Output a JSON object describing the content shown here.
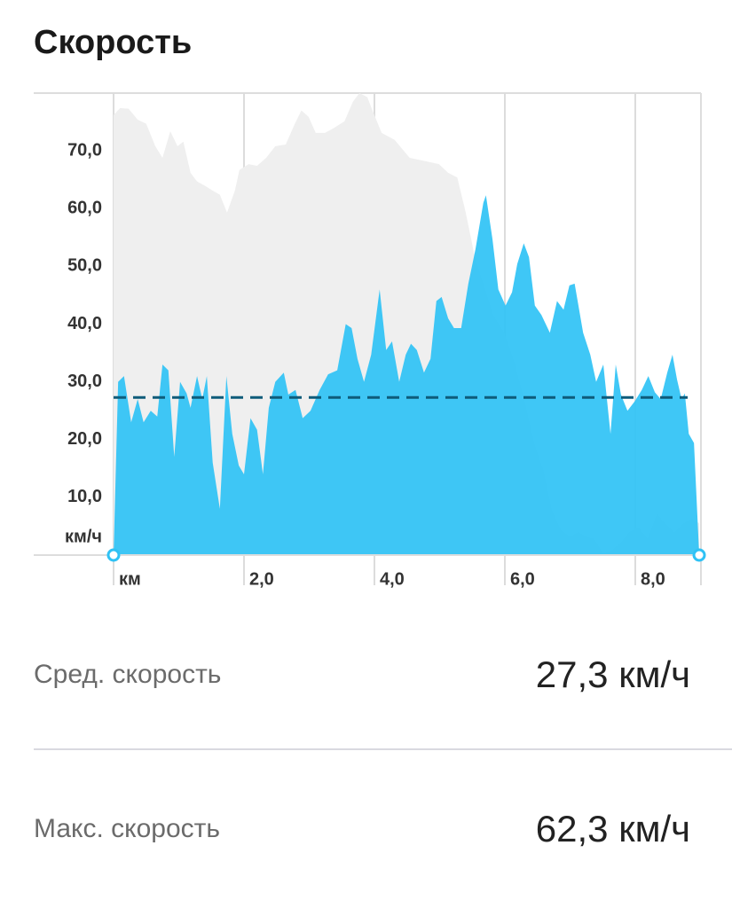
{
  "chart_data": {
    "type": "area",
    "title": "Скорость",
    "xlim": [
      0,
      9
    ],
    "ylim": [
      0,
      80
    ],
    "xticks": [
      {
        "value": 0,
        "label": "км"
      },
      {
        "value": 2,
        "label": "2,0"
      },
      {
        "value": 4,
        "label": "4,0"
      },
      {
        "value": 6,
        "label": "6,0"
      },
      {
        "value": 8,
        "label": "8,0"
      }
    ],
    "yticks": [
      {
        "value": 0,
        "label": "км/ч"
      },
      {
        "value": 10,
        "label": "10,0"
      },
      {
        "value": 20,
        "label": "20,0"
      },
      {
        "value": 30,
        "label": "30,0"
      },
      {
        "value": 40,
        "label": "40,0"
      },
      {
        "value": 50,
        "label": "50,0"
      },
      {
        "value": 60,
        "label": "60,0"
      },
      {
        "value": 70,
        "label": "70,0"
      }
    ],
    "grid": true,
    "series": [
      {
        "color": "#efefef",
        "x": [
          0,
          0.1,
          0.23,
          0.37,
          0.5,
          0.64,
          0.75,
          0.87,
          0.98,
          1.07,
          1.18,
          1.28,
          1.41,
          1.52,
          1.63,
          1.74,
          1.86,
          1.93,
          2.07,
          2.2,
          2.34,
          2.48,
          2.64,
          2.78,
          2.88,
          2.99,
          3.1,
          3.24,
          3.37,
          3.54,
          3.67,
          3.77,
          3.89,
          3.97,
          4.11,
          4.31,
          4.54,
          4.79,
          4.99,
          5.13,
          5.27,
          5.4,
          5.54,
          5.67,
          5.82,
          5.99,
          6.15,
          6.31,
          6.45,
          6.59,
          6.72,
          6.86,
          7.0,
          7.13,
          7.24,
          7.37,
          7.51,
          7.65,
          7.78,
          7.91,
          8.05,
          8.19,
          8.33,
          8.46,
          8.6,
          8.74,
          8.87,
          8.98
        ],
        "values": [
          76.2,
          77.4,
          77.3,
          75.4,
          74.7,
          70.8,
          68.8,
          73.4,
          70.8,
          71.6,
          66.2,
          64.7,
          63.9,
          63.1,
          62.4,
          59.3,
          63.1,
          66.7,
          67.7,
          67.4,
          68.8,
          70.8,
          71.1,
          74.7,
          77,
          75.9,
          73.1,
          73.1,
          73.9,
          75.1,
          78.5,
          80,
          79.3,
          77,
          73.1,
          71.9,
          68.8,
          68.2,
          67.7,
          66.2,
          65.4,
          59.3,
          51.6,
          47,
          41.6,
          38.5,
          33.2,
          26.3,
          19.4,
          14.7,
          7.8,
          4.3,
          3.2,
          4,
          3.2,
          2.8,
          0.2,
          0.9,
          2.2,
          4,
          4.8,
          2.8,
          7.1,
          5.5,
          4,
          5.5,
          6.3,
          5.5
        ]
      },
      {
        "color": "#2fc2f5",
        "x": [
          0,
          0.07,
          0.16,
          0.27,
          0.37,
          0.46,
          0.57,
          0.67,
          0.75,
          0.84,
          0.93,
          1.02,
          1.12,
          1.18,
          1.28,
          1.36,
          1.43,
          1.52,
          1.63,
          1.73,
          1.82,
          1.92,
          2.0,
          2.1,
          2.2,
          2.29,
          2.38,
          2.48,
          2.61,
          2.68,
          2.79,
          2.9,
          3.02,
          3.16,
          3.29,
          3.43,
          3.56,
          3.65,
          3.74,
          3.84,
          3.95,
          4.08,
          4.18,
          4.27,
          4.38,
          4.48,
          4.56,
          4.65,
          4.76,
          4.86,
          4.95,
          5.03,
          5.13,
          5.22,
          5.33,
          5.44,
          5.55,
          5.67,
          5.71,
          5.81,
          5.9,
          6.01,
          6.11,
          6.19,
          6.29,
          6.37,
          6.46,
          6.56,
          6.69,
          6.8,
          6.9,
          6.99,
          7.07,
          7.2,
          7.31,
          7.4,
          7.51,
          7.62,
          7.7,
          7.78,
          7.88,
          7.99,
          8.1,
          8.2,
          8.3,
          8.39,
          8.49,
          8.57,
          8.64,
          8.71,
          8.76,
          8.82,
          8.9,
          8.98
        ],
        "values": [
          0,
          30,
          31,
          23,
          27,
          23,
          25,
          24,
          33,
          32,
          17,
          30,
          28,
          25.5,
          31,
          27,
          31,
          16,
          8,
          31,
          21,
          15.5,
          14,
          23.7,
          21.7,
          14,
          25.5,
          30,
          31.6,
          27.8,
          28.6,
          23.7,
          25,
          28.6,
          31.3,
          32,
          40,
          39.3,
          34,
          30,
          34.7,
          46,
          35.5,
          37,
          30,
          34.7,
          36.6,
          35.5,
          31.6,
          34,
          44,
          44.7,
          41,
          39.3,
          39.3,
          47,
          53,
          61,
          62.3,
          54.7,
          46,
          43.2,
          45.5,
          50.4,
          54,
          51.6,
          43.2,
          41.6,
          38.5,
          44,
          42.5,
          46.7,
          47,
          38.5,
          34.7,
          30,
          33,
          21,
          33,
          27.8,
          25,
          26.6,
          28.6,
          31,
          28.2,
          27,
          31.6,
          34.7,
          30.4,
          27,
          28,
          21,
          19.4,
          0
        ]
      }
    ],
    "average_color": "#0e5b7a",
    "stats": [
      {
        "label": "Сред. скорость",
        "value": 27.3,
        "value_label": "27,3 км/ч"
      },
      {
        "label": "Макс. скорость",
        "value": 62.3,
        "value_label": "62,3 км/ч"
      }
    ]
  }
}
